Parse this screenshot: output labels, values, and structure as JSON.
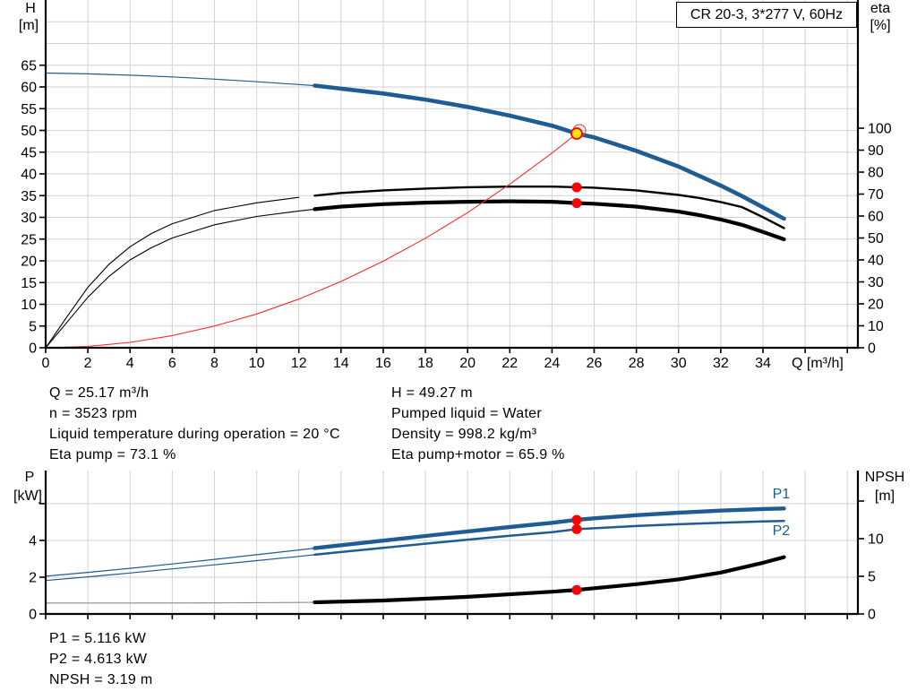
{
  "title_box": "CR 20-3, 3*277 V, 60Hz",
  "info_blocks": {
    "left": [
      "Q = 25.17 m³/h",
      "n = 3523 rpm",
      "Liquid temperature during operation = 20 °C",
      "Eta pump = 73.1 %"
    ],
    "right": [
      "H = 49.27 m",
      "Pumped liquid = Water",
      "Density = 998.2 kg/m³",
      "Eta pump+motor = 65.9 %"
    ],
    "bottom": [
      "P1 = 5.116 kW",
      "P2 = 4.613 kW",
      "NPSH = 3.19 m"
    ]
  },
  "operating_point": {
    "Q_m3h": 25.17,
    "H_m": 49.27,
    "n_rpm": 3523,
    "eta_pump_pct": 73.1,
    "eta_pump_motor_pct": 65.9,
    "P1_kW": 5.116,
    "P2_kW": 4.613,
    "NPSH_m": 3.19,
    "liquid": "Water",
    "density_kg_m3": 998.2,
    "temperature_C": 20
  },
  "colors": {
    "curve_blue": "#1f5c94",
    "curve_black": "#000000",
    "marker_red": "#ff0000",
    "system_red": "#ff2a2a",
    "duty_yellow": "#ffe600",
    "grid": "#d2d2d2",
    "npsh_thin": "#8a8a8a"
  },
  "chart_data": [
    {
      "id": "head_eta_chart",
      "type": "line",
      "title": "CR 20-3, 3*277 V, 60Hz",
      "x_axis": {
        "label": "Q [m³/h]",
        "min": 0,
        "max": 38.5,
        "grid_step": 2,
        "ticks": [
          [
            0,
            "0"
          ],
          [
            2,
            "2"
          ],
          [
            4,
            "4"
          ],
          [
            6,
            "6"
          ],
          [
            8,
            "8"
          ],
          [
            10,
            "10"
          ],
          [
            12,
            "12"
          ],
          [
            14,
            "14"
          ],
          [
            16,
            "16"
          ],
          [
            18,
            "18"
          ],
          [
            20,
            "20"
          ],
          [
            22,
            "22"
          ],
          [
            24,
            "24"
          ],
          [
            26,
            "26"
          ],
          [
            28,
            "28"
          ],
          [
            30,
            "30"
          ],
          [
            32,
            "32"
          ],
          [
            34,
            "34"
          ],
          [
            36,
            ""
          ],
          [
            38,
            ""
          ]
        ]
      },
      "left_axis": {
        "label": [
          "H",
          "[m]"
        ],
        "min": 0,
        "max": 80,
        "grid_step": 5,
        "ticks": [
          [
            0,
            "0"
          ],
          [
            5,
            "5"
          ],
          [
            10,
            "10"
          ],
          [
            15,
            "15"
          ],
          [
            20,
            "20"
          ],
          [
            25,
            "25"
          ],
          [
            30,
            "30"
          ],
          [
            35,
            "35"
          ],
          [
            40,
            "40"
          ],
          [
            45,
            "45"
          ],
          [
            50,
            "50"
          ],
          [
            55,
            "55"
          ],
          [
            60,
            "60"
          ],
          [
            65,
            "65"
          ]
        ]
      },
      "right_axis": {
        "label": [
          "eta",
          "[%]"
        ],
        "min": 0,
        "max": 158.4,
        "ticks": [
          [
            0,
            "0"
          ],
          [
            10,
            "10"
          ],
          [
            20,
            "20"
          ],
          [
            30,
            "30"
          ],
          [
            40,
            "40"
          ],
          [
            50,
            "50"
          ],
          [
            60,
            "60"
          ],
          [
            70,
            "70"
          ],
          [
            80,
            "80"
          ],
          [
            90,
            "90"
          ],
          [
            100,
            "100"
          ]
        ]
      },
      "series": [
        {
          "name": "head-curve",
          "axis": "left",
          "color": "#1f5c94",
          "thin": 1.2,
          "thick": 4.6,
          "split": 12.75,
          "q": [
            0,
            2,
            4,
            6,
            8,
            10,
            12,
            12.75,
            14,
            16,
            18,
            20,
            22,
            24,
            25.17,
            26,
            28,
            30,
            32,
            33,
            34,
            35
          ],
          "v": [
            63.2,
            63,
            62.7,
            62.3,
            61.8,
            61.2,
            60.55,
            60.3,
            59.6,
            58.5,
            57.1,
            55.4,
            53.4,
            51.1,
            49.27,
            48.4,
            45.3,
            41.7,
            37.3,
            34.9,
            32.3,
            29.7
          ]
        },
        {
          "name": "eta-pump-curve",
          "axis": "right",
          "color": "#000000",
          "thin": 1.1,
          "thick": 2.4,
          "split": 12.3,
          "q": [
            0,
            1,
            2,
            3,
            4,
            5,
            6,
            8,
            10,
            12,
            12.75,
            14,
            16,
            18,
            20,
            22,
            24,
            25.17,
            26,
            28,
            30,
            31,
            32,
            33,
            34,
            35
          ],
          "v": [
            0,
            14,
            27.5,
            38,
            46,
            52,
            56.5,
            62.5,
            66,
            68.5,
            69.3,
            70.5,
            71.7,
            72.5,
            73.1,
            73.4,
            73.4,
            73.1,
            72.9,
            71.7,
            69.6,
            68.2,
            66.4,
            64.1,
            59.5,
            54.5
          ]
        },
        {
          "name": "eta-pump-motor-curve",
          "axis": "right",
          "color": "#000000",
          "thin": 1.1,
          "thick": 4.2,
          "split": 12.75,
          "q": [
            0,
            1,
            2,
            3,
            4,
            5,
            6,
            8,
            10,
            12,
            12.75,
            14,
            16,
            18,
            20,
            22,
            24,
            25.17,
            26,
            28,
            30,
            31,
            32,
            33,
            34,
            35
          ],
          "v": [
            0,
            11.5,
            23,
            32.5,
            40,
            45.5,
            50,
            56,
            59.8,
            62.3,
            63.1,
            64.3,
            65.4,
            66.1,
            66.5,
            66.7,
            66.5,
            65.9,
            65.6,
            64.3,
            62,
            60.4,
            58.4,
            56,
            52.8,
            49.4
          ]
        },
        {
          "name": "system-curve",
          "axis": "left",
          "color": "#ff2a2a",
          "thin": 1.1,
          "thick": 1.1,
          "split": null,
          "q": [
            0,
            2,
            4,
            6,
            8,
            10,
            12,
            14,
            16,
            18,
            20,
            22,
            24,
            25.17
          ],
          "v": [
            0,
            0.31,
            1.24,
            2.8,
            4.98,
            7.78,
            11.2,
            15.25,
            19.91,
            25.19,
            31.09,
            37.64,
            44.8,
            49.27
          ]
        }
      ],
      "markers": [
        {
          "name": "duty-point-ring",
          "q": 25.3,
          "v": 49.9,
          "axis": "left",
          "r": 7,
          "fill": "none",
          "stroke": "#ff2a2a",
          "sw": 1
        },
        {
          "name": "duty-point",
          "q": 25.17,
          "v": 49.27,
          "axis": "left",
          "r": 6,
          "fill": "#ffe600",
          "stroke": "#ff0000",
          "sw": 1.8
        },
        {
          "name": "eta-pump-point",
          "q": 25.17,
          "v": 73.1,
          "axis": "right",
          "r": 5.5,
          "fill": "#ff0000",
          "stroke": "none",
          "sw": 0
        },
        {
          "name": "eta-pump-motor-point",
          "q": 25.17,
          "v": 65.9,
          "axis": "right",
          "r": 5.5,
          "fill": "#ff0000",
          "stroke": "none",
          "sw": 0
        }
      ],
      "labels": []
    },
    {
      "id": "power_npsh_chart",
      "type": "line",
      "x_axis": {
        "label": "",
        "min": 0,
        "max": 38.5,
        "grid_step": 2,
        "ticks": [
          [
            0,
            ""
          ],
          [
            2,
            ""
          ],
          [
            4,
            ""
          ],
          [
            6,
            ""
          ],
          [
            8,
            ""
          ],
          [
            10,
            ""
          ],
          [
            12,
            ""
          ],
          [
            14,
            ""
          ],
          [
            16,
            ""
          ],
          [
            18,
            ""
          ],
          [
            20,
            ""
          ],
          [
            22,
            ""
          ],
          [
            24,
            ""
          ],
          [
            26,
            ""
          ],
          [
            28,
            ""
          ],
          [
            30,
            ""
          ],
          [
            32,
            ""
          ],
          [
            34,
            ""
          ],
          [
            36,
            ""
          ],
          [
            38,
            ""
          ]
        ]
      },
      "left_axis": {
        "label": [
          "P",
          "[kW]"
        ],
        "min": 0,
        "max": 7.8,
        "grid_step": 2,
        "ticks": [
          [
            0,
            "0"
          ],
          [
            2,
            "2"
          ],
          [
            4,
            "4"
          ],
          [
            6,
            ""
          ]
        ]
      },
      "right_axis": {
        "label": [
          "NPSH",
          "[m]"
        ],
        "min": 0,
        "max": 19.05,
        "ticks": [
          [
            0,
            "0"
          ],
          [
            5,
            "5"
          ],
          [
            10,
            "10"
          ],
          [
            15,
            ""
          ]
        ]
      },
      "series": [
        {
          "name": "p1-curve",
          "axis": "left",
          "color": "#1f5c94",
          "thin": 1.2,
          "thick": 4.4,
          "split": 12.75,
          "q": [
            0,
            2,
            4,
            6,
            8,
            10,
            12,
            12.75,
            14,
            16,
            18,
            20,
            22,
            24,
            25.17,
            26,
            28,
            30,
            32,
            34,
            35
          ],
          "v": [
            2.05,
            2.26,
            2.48,
            2.72,
            2.97,
            3.22,
            3.48,
            3.58,
            3.74,
            3.99,
            4.24,
            4.49,
            4.73,
            4.96,
            5.12,
            5.2,
            5.37,
            5.51,
            5.62,
            5.71,
            5.74
          ]
        },
        {
          "name": "p2-curve",
          "axis": "left",
          "color": "#1f5c94",
          "thin": 1.2,
          "thick": 2.5,
          "split": 12.75,
          "q": [
            0,
            2,
            4,
            6,
            8,
            10,
            12,
            12.75,
            14,
            16,
            18,
            20,
            22,
            24,
            25.17,
            26,
            28,
            30,
            32,
            34,
            35
          ],
          "v": [
            1.82,
            2.02,
            2.23,
            2.45,
            2.67,
            2.9,
            3.13,
            3.22,
            3.37,
            3.6,
            3.82,
            4.04,
            4.25,
            4.45,
            4.61,
            4.66,
            4.78,
            4.88,
            4.96,
            5.03,
            5.06
          ]
        },
        {
          "name": "npsh-curve",
          "axis": "right",
          "color": "#000000",
          "thin_color": "#8a8a8a",
          "thin": 1.1,
          "thick": 4.2,
          "split": 12.75,
          "q": [
            0,
            4,
            8,
            12,
            12.75,
            16,
            20,
            24,
            25.17,
            28,
            30,
            32,
            34,
            35
          ],
          "v": [
            1.45,
            1.45,
            1.47,
            1.52,
            1.55,
            1.78,
            2.28,
            2.95,
            3.19,
            3.95,
            4.6,
            5.5,
            6.8,
            7.55
          ]
        }
      ],
      "markers": [
        {
          "name": "p1-point",
          "q": 25.17,
          "v": 5.116,
          "axis": "left",
          "r": 5.5,
          "fill": "#ff0000",
          "stroke": "none",
          "sw": 0
        },
        {
          "name": "p2-point",
          "q": 25.17,
          "v": 4.613,
          "axis": "left",
          "r": 5.5,
          "fill": "#ff0000",
          "stroke": "none",
          "sw": 0
        },
        {
          "name": "npsh-point",
          "q": 25.17,
          "v": 3.19,
          "axis": "right",
          "r": 5.5,
          "fill": "#ff0000",
          "stroke": "none",
          "sw": 0
        }
      ],
      "labels": [
        {
          "text": "P1",
          "q": 34.45,
          "v": 6.28,
          "axis": "left",
          "color": "#1f5c94"
        },
        {
          "text": "P2",
          "q": 34.45,
          "v": 4.28,
          "axis": "left",
          "color": "#1f5c94"
        }
      ]
    }
  ]
}
